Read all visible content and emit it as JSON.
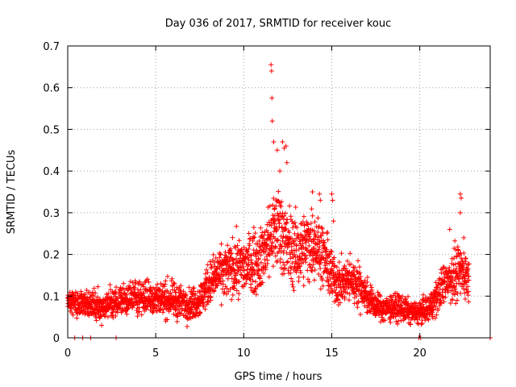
{
  "chart_data": {
    "type": "scatter",
    "title": "Day 036 of 2017, SRMTID for receiver kouc",
    "xlabel": "GPS time / hours",
    "ylabel": "SRMTID / TECUs",
    "xlim": [
      0,
      24
    ],
    "ylim": [
      0,
      0.7
    ],
    "xticks": [
      "0",
      "5",
      "10",
      "15",
      "20"
    ],
    "yticks": [
      "0",
      "0.1",
      "0.2",
      "0.3",
      "0.4",
      "0.5",
      "0.6",
      "0.7"
    ],
    "grid": true,
    "marker": "+",
    "color": "#ff0000",
    "trend": {
      "x": [
        0,
        1,
        2,
        3,
        4,
        5,
        6,
        7,
        7.5,
        8,
        8.5,
        9,
        9.5,
        10,
        10.5,
        11,
        11.5,
        12,
        12.5,
        13,
        13.5,
        14,
        14.5,
        15,
        15.5,
        16,
        16.5,
        17,
        17.5,
        18,
        18.5,
        19,
        19.5,
        20,
        20.5,
        21,
        21.5,
        22,
        22.5,
        22.8
      ],
      "y": [
        0.085,
        0.08,
        0.075,
        0.09,
        0.1,
        0.095,
        0.09,
        0.08,
        0.09,
        0.13,
        0.15,
        0.16,
        0.17,
        0.17,
        0.18,
        0.19,
        0.24,
        0.27,
        0.22,
        0.2,
        0.22,
        0.23,
        0.2,
        0.15,
        0.13,
        0.14,
        0.13,
        0.1,
        0.075,
        0.07,
        0.075,
        0.07,
        0.06,
        0.06,
        0.07,
        0.1,
        0.14,
        0.15,
        0.16,
        0.14
      ],
      "spread": [
        0.03,
        0.03,
        0.03,
        0.035,
        0.04,
        0.04,
        0.04,
        0.035,
        0.04,
        0.05,
        0.055,
        0.06,
        0.065,
        0.065,
        0.07,
        0.07,
        0.09,
        0.1,
        0.09,
        0.08,
        0.08,
        0.08,
        0.07,
        0.06,
        0.05,
        0.05,
        0.05,
        0.04,
        0.03,
        0.03,
        0.03,
        0.03,
        0.025,
        0.025,
        0.03,
        0.04,
        0.05,
        0.06,
        0.06,
        0.05
      ]
    },
    "sample_step_hours": 0.008333,
    "peaks": [
      {
        "x": 11.55,
        "y": 0.655
      },
      {
        "x": 11.58,
        "y": 0.64
      },
      {
        "x": 11.6,
        "y": 0.575
      },
      {
        "x": 11.62,
        "y": 0.52
      },
      {
        "x": 11.7,
        "y": 0.47
      },
      {
        "x": 11.9,
        "y": 0.45
      },
      {
        "x": 12.2,
        "y": 0.47
      },
      {
        "x": 12.3,
        "y": 0.455
      },
      {
        "x": 12.4,
        "y": 0.46
      },
      {
        "x": 12.45,
        "y": 0.42
      },
      {
        "x": 12.05,
        "y": 0.4
      },
      {
        "x": 13.9,
        "y": 0.35
      },
      {
        "x": 14.3,
        "y": 0.345
      },
      {
        "x": 14.35,
        "y": 0.33
      },
      {
        "x": 15.0,
        "y": 0.345
      },
      {
        "x": 15.05,
        "y": 0.33
      },
      {
        "x": 15.1,
        "y": 0.28
      },
      {
        "x": 22.3,
        "y": 0.345
      },
      {
        "x": 22.35,
        "y": 0.335
      },
      {
        "x": 22.3,
        "y": 0.3
      },
      {
        "x": 21.7,
        "y": 0.26
      },
      {
        "x": 22.5,
        "y": 0.24
      }
    ],
    "zero_points_x": [
      0.4,
      0.85,
      1.3,
      2.75,
      24.0,
      19.95,
      20.05
    ]
  }
}
